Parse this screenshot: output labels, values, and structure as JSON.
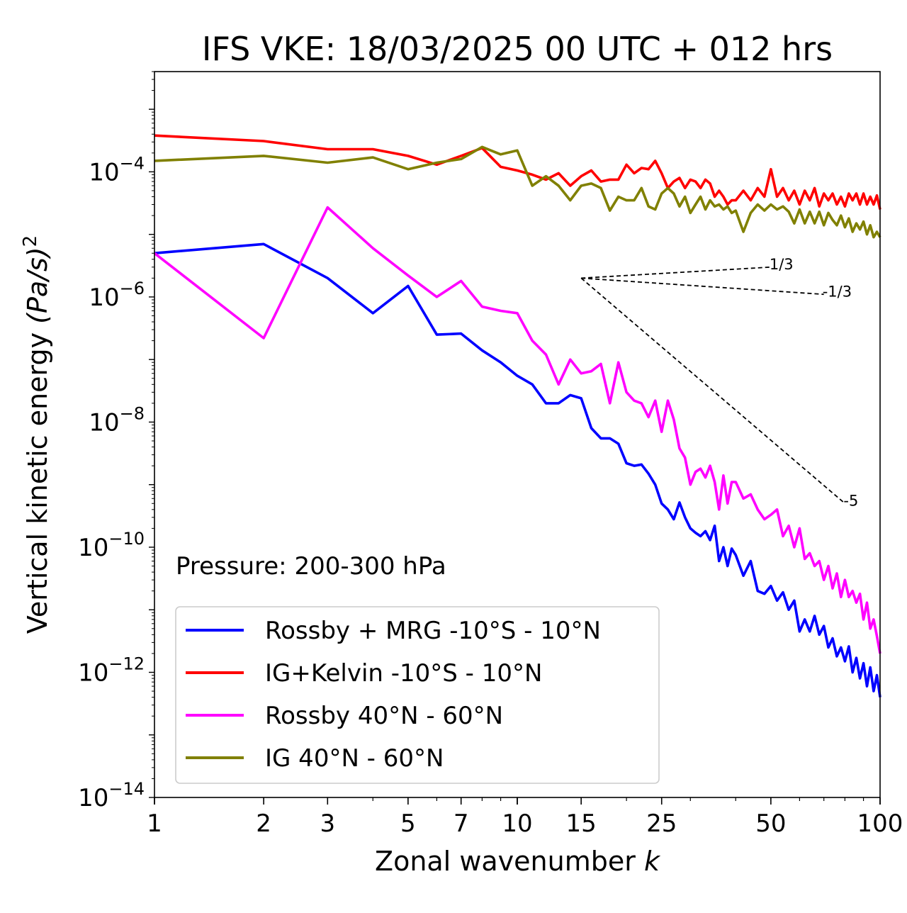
{
  "chart_data": {
    "type": "line",
    "title": "IFS VKE: 18/03/2025 00 UTC + 012 hrs",
    "xlabel_text": "Zonal wavenumber ",
    "xlabel_var": "k",
    "ylabel_text": "Vertical kinetic energy ",
    "ylabel_var": "(Pa/s)",
    "ylabel_exp": "2",
    "x_scale": "log",
    "y_scale": "log",
    "xlim": [
      1,
      100
    ],
    "ylim": [
      1e-14,
      0.004
    ],
    "x_ticks": [
      1,
      2,
      3,
      5,
      7,
      10,
      15,
      25,
      50,
      100
    ],
    "y_ticks": [
      {
        "base": "10",
        "exp": "−4",
        "value": 0.0001
      },
      {
        "base": "10",
        "exp": "−6",
        "value": 1e-06
      },
      {
        "base": "10",
        "exp": "−8",
        "value": 1e-08
      },
      {
        "base": "10",
        "exp": "−10",
        "value": 1e-10
      },
      {
        "base": "10",
        "exp": "−12",
        "value": 1e-12
      },
      {
        "base": "10",
        "exp": "−14",
        "value": 1e-14
      }
    ],
    "annotation": "Pressure: 200-300 hPa",
    "legend_position": "lower-left",
    "grid": false,
    "reference_slopes": [
      {
        "label": "1/3",
        "from": [
          15,
          2e-06
        ],
        "to": [
          50,
          3e-06
        ]
      },
      {
        "label": "-1/3",
        "from": [
          15,
          2e-06
        ],
        "to": [
          70,
          1.1e-06
        ]
      },
      {
        "label": "-5",
        "from": [
          15,
          2e-06
        ],
        "to": [
          80,
          5e-10
        ]
      }
    ],
    "series": [
      {
        "name": "Rossby + MRG -10°S - 10°N",
        "color": "#0000ff",
        "x": [
          1,
          2,
          3,
          4,
          5,
          6,
          7,
          8,
          9,
          10,
          11,
          12,
          13,
          14,
          15,
          16,
          17,
          18,
          19,
          20,
          21,
          22,
          23,
          24,
          25,
          26,
          27,
          28,
          29,
          30,
          31,
          32,
          33,
          34,
          35,
          36,
          37,
          38,
          39,
          40,
          42,
          44,
          46,
          48,
          50,
          52,
          54,
          56,
          58,
          60,
          62,
          64,
          66,
          68,
          70,
          72,
          74,
          76,
          78,
          80,
          82,
          84,
          86,
          88,
          90,
          92,
          94,
          96,
          98,
          100
        ],
        "y": [
          5e-06,
          7e-06,
          2e-06,
          5.5e-07,
          1.5e-06,
          2.5e-07,
          2.6e-07,
          1.4e-07,
          9e-08,
          5.5e-08,
          4e-08,
          2e-08,
          2e-08,
          2.7e-08,
          2.4e-08,
          8e-09,
          5.5e-09,
          5.5e-09,
          4.5e-09,
          2.2e-09,
          2e-09,
          2.1e-09,
          1.5e-09,
          1e-09,
          5e-10,
          4e-10,
          2.8e-10,
          5.2e-10,
          3e-10,
          2e-10,
          1.7e-10,
          1.5e-10,
          1.8e-10,
          1.3e-10,
          2.2e-10,
          6e-11,
          1e-10,
          5e-11,
          9.5e-11,
          7.5e-11,
          3.5e-11,
          6e-11,
          2e-11,
          1.8e-11,
          2.4e-11,
          1.4e-11,
          1.9e-11,
          1e-11,
          1.4e-11,
          4.5e-12,
          7e-12,
          4.5e-12,
          8e-12,
          4e-12,
          5.5e-12,
          2.5e-12,
          3.5e-12,
          1.8e-12,
          2.5e-12,
          1.5e-12,
          2.6e-12,
          1e-12,
          1.7e-12,
          8e-13,
          1.4e-12,
          6e-13,
          1.2e-12,
          5e-13,
          9e-13,
          4e-13
        ]
      },
      {
        "name": "IG+Kelvin -10°S - 10°N",
        "color": "#ff0000",
        "x": [
          1,
          2,
          3,
          4,
          5,
          6,
          7,
          8,
          9,
          10,
          11,
          12,
          13,
          14,
          15,
          16,
          17,
          18,
          19,
          20,
          21,
          22,
          23,
          24,
          25,
          26,
          27,
          28,
          29,
          30,
          31,
          32,
          33,
          34,
          35,
          36,
          37,
          38,
          39,
          40,
          42,
          44,
          46,
          48,
          50,
          52,
          54,
          56,
          58,
          60,
          62,
          64,
          66,
          68,
          70,
          72,
          74,
          76,
          78,
          80,
          82,
          84,
          86,
          88,
          90,
          92,
          94,
          96,
          98,
          100
        ],
        "y": [
          0.00038,
          0.00031,
          0.00023,
          0.00023,
          0.00018,
          0.00013,
          0.00018,
          0.00024,
          0.00012,
          0.000105,
          9e-05,
          7.5e-05,
          9.5e-05,
          6e-05,
          8.5e-05,
          0.000105,
          7e-05,
          7.5e-05,
          7.5e-05,
          0.00013,
          9.5e-05,
          0.000115,
          0.00011,
          0.00015,
          9.5e-05,
          5.5e-05,
          7e-05,
          8e-05,
          5.5e-05,
          7.5e-05,
          7e-05,
          5.5e-05,
          7.5e-05,
          6.5e-05,
          4e-05,
          5e-05,
          4e-05,
          3e-05,
          3.5e-05,
          3.5e-05,
          5e-05,
          3.5e-05,
          5.5e-05,
          4e-05,
          0.00011,
          4e-05,
          5.5e-05,
          3.5e-05,
          5e-05,
          3e-05,
          5e-05,
          3.5e-05,
          5.5e-05,
          2.8e-05,
          4.5e-05,
          3.5e-05,
          4.5e-05,
          3e-05,
          4e-05,
          2.8e-05,
          4.5e-05,
          3.5e-05,
          4.5e-05,
          3e-05,
          4.5e-05,
          3e-05,
          4e-05,
          3e-05,
          4.2e-05,
          2.5e-05
        ]
      },
      {
        "name": "Rossby 40°N - 60°N",
        "color": "#ff00ff",
        "x": [
          1,
          2,
          3,
          4,
          5,
          6,
          7,
          8,
          9,
          10,
          11,
          12,
          13,
          14,
          15,
          16,
          17,
          18,
          19,
          20,
          21,
          22,
          23,
          24,
          25,
          26,
          27,
          28,
          29,
          30,
          31,
          32,
          33,
          34,
          35,
          36,
          37,
          38,
          39,
          40,
          42,
          44,
          46,
          48,
          50,
          52,
          54,
          56,
          58,
          60,
          62,
          64,
          66,
          68,
          70,
          72,
          74,
          76,
          78,
          80,
          82,
          84,
          86,
          88,
          90,
          92,
          94,
          96,
          98,
          100
        ],
        "y": [
          5e-06,
          2.2e-07,
          2.7e-05,
          6e-06,
          2.2e-06,
          1e-06,
          1.8e-06,
          7e-07,
          6e-07,
          5.5e-07,
          2e-07,
          1.2e-07,
          4e-08,
          1e-07,
          6e-08,
          6.5e-08,
          8.5e-08,
          2e-08,
          9e-08,
          3e-08,
          2.2e-08,
          2e-08,
          1.2e-08,
          2.2e-08,
          7e-09,
          2.2e-08,
          1.1e-08,
          3.8e-09,
          2.7e-09,
          1e-09,
          1.6e-09,
          1.8e-09,
          1.3e-09,
          2e-09,
          1.1e-09,
          4e-10,
          1.4e-09,
          5e-10,
          1.1e-09,
          1.1e-09,
          6e-10,
          7e-10,
          4e-10,
          2.8e-10,
          3.3e-10,
          4e-10,
          1.5e-10,
          2.2e-10,
          1e-10,
          2e-10,
          6.5e-11,
          8e-11,
          5e-11,
          6e-11,
          3e-11,
          5e-11,
          2.2e-11,
          3.8e-11,
          1.6e-11,
          3e-11,
          1.6e-11,
          2e-11,
          1.3e-11,
          1.8e-11,
          7e-12,
          1.3e-11,
          5e-12,
          7e-12,
          3.8e-12,
          2e-12
        ]
      },
      {
        "name": "IG 40°N - 60°N",
        "color": "#808000",
        "x": [
          1,
          2,
          3,
          4,
          5,
          6,
          7,
          8,
          9,
          10,
          11,
          12,
          13,
          14,
          15,
          16,
          17,
          18,
          19,
          20,
          21,
          22,
          23,
          24,
          25,
          26,
          27,
          28,
          29,
          30,
          31,
          32,
          33,
          34,
          35,
          36,
          37,
          38,
          39,
          40,
          42,
          44,
          46,
          48,
          50,
          52,
          54,
          56,
          58,
          60,
          62,
          64,
          66,
          68,
          70,
          72,
          74,
          76,
          78,
          80,
          82,
          84,
          86,
          88,
          90,
          92,
          94,
          96,
          98,
          100
        ],
        "y": [
          0.00015,
          0.00018,
          0.00014,
          0.00017,
          0.00011,
          0.00014,
          0.00016,
          0.00025,
          0.00019,
          0.00022,
          6e-05,
          8.5e-05,
          6e-05,
          3.5e-05,
          6e-05,
          6.5e-05,
          5.5e-05,
          2.4e-05,
          4e-05,
          3.5e-05,
          3.5e-05,
          5.5e-05,
          2.8e-05,
          2.5e-05,
          4.5e-05,
          5.5e-05,
          4.5e-05,
          2.8e-05,
          4e-05,
          2.2e-05,
          3e-05,
          4e-05,
          2.5e-05,
          3.5e-05,
          2.8e-05,
          3e-05,
          2.5e-05,
          2.8e-05,
          2.2e-05,
          2.4e-05,
          1.1e-05,
          2.2e-05,
          3e-05,
          2.4e-05,
          3e-05,
          2.5e-05,
          2.8e-05,
          2.3e-05,
          1.5e-05,
          2.5e-05,
          1.5e-05,
          2.3e-05,
          1.5e-05,
          2.3e-05,
          1.4e-05,
          2.2e-05,
          1.7e-05,
          1.4e-05,
          2e-05,
          1.3e-05,
          1.8e-05,
          1.1e-05,
          1.5e-05,
          1.2e-05,
          1.6e-05,
          1e-05,
          1.4e-05,
          9e-06,
          1.1e-05,
          9e-06
        ]
      }
    ]
  }
}
